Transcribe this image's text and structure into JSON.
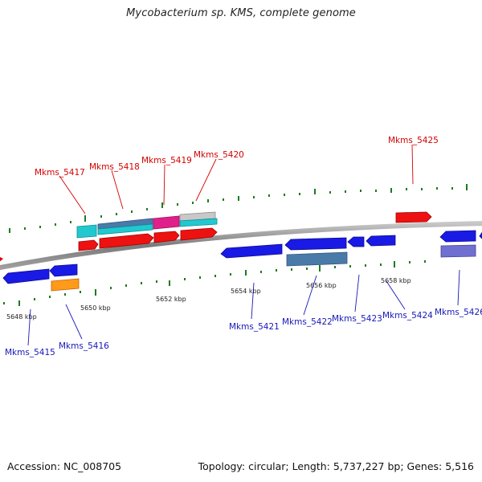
{
  "title": "Mycobacterium sp. KMS, complete genome",
  "footer": {
    "accession": "Accession: NC_008705",
    "topology": "Topology: circular; Length: 5,737,227 bp; Genes: 5,516"
  },
  "colors": {
    "forward_label": "#d40000",
    "reverse_label": "#1818b8",
    "backbone": "#888888",
    "gc_ticks": "#1e7a1e"
  },
  "scale_labels": [
    "5648 kbp",
    "5650 kbp",
    "5652 kbp",
    "5654 kbp",
    "5656 kbp",
    "5658 kbp"
  ],
  "forward_genes": [
    "Mkms_5417",
    "Mkms_5418",
    "Mkms_5419",
    "Mkms_5420",
    "Mkms_5425"
  ],
  "reverse_genes": [
    "Mkms_5415",
    "Mkms_5416",
    "Mkms_5421",
    "Mkms_5422",
    "Mkms_5423",
    "Mkms_5424",
    "Mkms_5426"
  ]
}
